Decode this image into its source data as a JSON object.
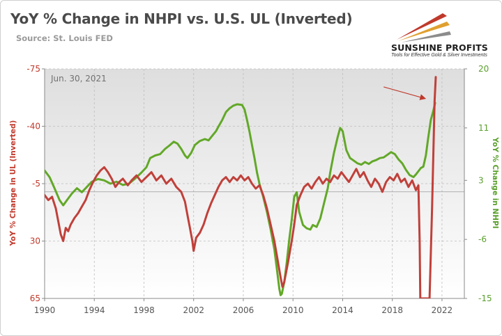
{
  "header": {
    "title": "YoY % Change in NHPI vs. U.S. UL (Inverted)",
    "source": "Source: St. Louis FED"
  },
  "logo": {
    "name": "SUNSHINE PROFITS",
    "tagline": "Tools for Effective Gold & Silver Investments",
    "colors": [
      "#c0392b",
      "#e0a030",
      "#8c8c8c"
    ]
  },
  "colors": {
    "ul_series": "#c0403a",
    "nhpi_series": "#62a828",
    "left_axis_text": "#c0392b",
    "right_axis_text": "#5aa02c",
    "grid": "#bdbdbd"
  },
  "chart_data": {
    "type": "line",
    "annotation": "Jun. 30, 2021",
    "xlim": [
      1990,
      2023.8
    ],
    "x_ticks": [
      1990,
      1994,
      1998,
      2002,
      2006,
      2010,
      2014,
      2018,
      2022
    ],
    "grid": true,
    "y_left": {
      "label": "YoY % Change in UL (Inverted)",
      "ticks": [
        -75,
        -40,
        -5,
        30,
        65
      ],
      "range": [
        -75,
        65
      ],
      "inverted": true
    },
    "y_right": {
      "label": "YoY % Change in NHPI",
      "ticks": [
        20,
        11,
        3,
        -6,
        -15
      ],
      "range": [
        -15,
        20
      ]
    },
    "reference_line": {
      "axis": "left",
      "value": 0
    },
    "series": [
      {
        "name": "YoY % Change in UL (Inverted)",
        "axis": "left",
        "points": [
          [
            1990.0,
            2
          ],
          [
            1990.3,
            5
          ],
          [
            1990.6,
            3
          ],
          [
            1990.9,
            10
          ],
          [
            1991.1,
            18
          ],
          [
            1991.3,
            26
          ],
          [
            1991.5,
            30
          ],
          [
            1991.7,
            22
          ],
          [
            1991.9,
            24
          ],
          [
            1992.1,
            20
          ],
          [
            1992.4,
            16
          ],
          [
            1992.7,
            13
          ],
          [
            1993.0,
            9
          ],
          [
            1993.3,
            5
          ],
          [
            1993.6,
            -1
          ],
          [
            1993.9,
            -6
          ],
          [
            1994.2,
            -10
          ],
          [
            1994.5,
            -13
          ],
          [
            1994.8,
            -15
          ],
          [
            1995.1,
            -12
          ],
          [
            1995.4,
            -8
          ],
          [
            1995.7,
            -3
          ],
          [
            1996.0,
            -6
          ],
          [
            1996.3,
            -8
          ],
          [
            1996.7,
            -4
          ],
          [
            1997.0,
            -7
          ],
          [
            1997.4,
            -10
          ],
          [
            1997.8,
            -6
          ],
          [
            1998.2,
            -9
          ],
          [
            1998.6,
            -12
          ],
          [
            1999.0,
            -7
          ],
          [
            1999.4,
            -10
          ],
          [
            1999.8,
            -5
          ],
          [
            2000.2,
            -8
          ],
          [
            2000.6,
            -3
          ],
          [
            2001.0,
            0
          ],
          [
            2001.3,
            6
          ],
          [
            2001.5,
            14
          ],
          [
            2001.7,
            22
          ],
          [
            2001.9,
            30
          ],
          [
            2002.0,
            36
          ],
          [
            2002.2,
            28
          ],
          [
            2002.5,
            25
          ],
          [
            2002.8,
            20
          ],
          [
            2003.1,
            13
          ],
          [
            2003.4,
            7
          ],
          [
            2003.7,
            2
          ],
          [
            2004.0,
            -3
          ],
          [
            2004.3,
            -7
          ],
          [
            2004.6,
            -9
          ],
          [
            2004.9,
            -6
          ],
          [
            2005.2,
            -9
          ],
          [
            2005.5,
            -7
          ],
          [
            2005.8,
            -10
          ],
          [
            2006.1,
            -7
          ],
          [
            2006.4,
            -9
          ],
          [
            2006.7,
            -5
          ],
          [
            2007.0,
            -2
          ],
          [
            2007.3,
            -4
          ],
          [
            2007.6,
            2
          ],
          [
            2007.9,
            10
          ],
          [
            2008.2,
            20
          ],
          [
            2008.5,
            30
          ],
          [
            2008.8,
            43
          ],
          [
            2009.0,
            52
          ],
          [
            2009.15,
            58
          ],
          [
            2009.3,
            55
          ],
          [
            2009.6,
            43
          ],
          [
            2009.9,
            30
          ],
          [
            2010.1,
            20
          ],
          [
            2010.3,
            8
          ],
          [
            2010.6,
            2
          ],
          [
            2010.9,
            -3
          ],
          [
            2011.2,
            -5
          ],
          [
            2011.5,
            -2
          ],
          [
            2011.8,
            -6
          ],
          [
            2012.1,
            -9
          ],
          [
            2012.4,
            -5
          ],
          [
            2012.7,
            -8
          ],
          [
            2013.0,
            -6
          ],
          [
            2013.3,
            -10
          ],
          [
            2013.6,
            -8
          ],
          [
            2013.9,
            -12
          ],
          [
            2014.2,
            -9
          ],
          [
            2014.5,
            -6
          ],
          [
            2014.8,
            -10
          ],
          [
            2015.1,
            -14
          ],
          [
            2015.4,
            -9
          ],
          [
            2015.7,
            -12
          ],
          [
            2016.0,
            -7
          ],
          [
            2016.3,
            -3
          ],
          [
            2016.6,
            -8
          ],
          [
            2016.9,
            -5
          ],
          [
            2017.2,
            0
          ],
          [
            2017.5,
            -6
          ],
          [
            2017.8,
            -9
          ],
          [
            2018.1,
            -7
          ],
          [
            2018.4,
            -11
          ],
          [
            2018.7,
            -6
          ],
          [
            2019.0,
            -8
          ],
          [
            2019.3,
            -3
          ],
          [
            2019.6,
            -7
          ],
          [
            2019.9,
            -1
          ],
          [
            2020.1,
            -4
          ],
          [
            2020.2,
            30
          ],
          [
            2020.25,
            65
          ],
          [
            2021.0,
            65
          ],
          [
            2021.2,
            10
          ],
          [
            2021.4,
            -55
          ],
          [
            2021.5,
            -70
          ]
        ]
      },
      {
        "name": "YoY % Change in NHPI",
        "axis": "right",
        "points": [
          [
            1990.0,
            4.5
          ],
          [
            1990.4,
            3.5
          ],
          [
            1990.8,
            1.8
          ],
          [
            1991.2,
            0.0
          ],
          [
            1991.5,
            -0.8
          ],
          [
            1991.8,
            0.0
          ],
          [
            1992.2,
            1.0
          ],
          [
            1992.6,
            1.8
          ],
          [
            1993.0,
            1.2
          ],
          [
            1993.4,
            2.0
          ],
          [
            1993.8,
            2.8
          ],
          [
            1994.3,
            3.2
          ],
          [
            1994.8,
            3.0
          ],
          [
            1995.3,
            2.5
          ],
          [
            1995.8,
            2.8
          ],
          [
            1996.3,
            2.3
          ],
          [
            1996.8,
            2.5
          ],
          [
            1997.3,
            3.3
          ],
          [
            1997.8,
            4.2
          ],
          [
            1998.2,
            5.0
          ],
          [
            1998.5,
            6.4
          ],
          [
            1998.9,
            6.8
          ],
          [
            1999.3,
            7.0
          ],
          [
            1999.7,
            7.8
          ],
          [
            2000.1,
            8.4
          ],
          [
            2000.4,
            8.9
          ],
          [
            2000.7,
            8.6
          ],
          [
            2001.0,
            7.8
          ],
          [
            2001.3,
            6.8
          ],
          [
            2001.5,
            6.4
          ],
          [
            2001.8,
            7.2
          ],
          [
            2002.1,
            8.4
          ],
          [
            2002.5,
            9.0
          ],
          [
            2002.9,
            9.3
          ],
          [
            2003.2,
            9.1
          ],
          [
            2003.5,
            9.8
          ],
          [
            2003.8,
            10.5
          ],
          [
            2004.0,
            11.2
          ],
          [
            2004.3,
            12.2
          ],
          [
            2004.6,
            13.4
          ],
          [
            2004.9,
            14.0
          ],
          [
            2005.2,
            14.4
          ],
          [
            2005.5,
            14.6
          ],
          [
            2005.9,
            14.5
          ],
          [
            2006.1,
            13.8
          ],
          [
            2006.3,
            12.2
          ],
          [
            2006.5,
            10.4
          ],
          [
            2006.7,
            8.4
          ],
          [
            2006.9,
            6.4
          ],
          [
            2007.1,
            4.2
          ],
          [
            2007.3,
            2.5
          ],
          [
            2007.6,
            0.5
          ],
          [
            2007.9,
            -1.8
          ],
          [
            2008.2,
            -4.5
          ],
          [
            2008.5,
            -7.5
          ],
          [
            2008.7,
            -10.5
          ],
          [
            2008.9,
            -13.5
          ],
          [
            2009.0,
            -14.5
          ],
          [
            2009.1,
            -14.3
          ],
          [
            2009.3,
            -12.5
          ],
          [
            2009.5,
            -9.5
          ],
          [
            2009.7,
            -6.0
          ],
          [
            2009.9,
            -3.0
          ],
          [
            2010.1,
            0.5
          ],
          [
            2010.3,
            1.2
          ],
          [
            2010.5,
            -1.8
          ],
          [
            2010.8,
            -3.8
          ],
          [
            2011.1,
            -4.3
          ],
          [
            2011.4,
            -4.5
          ],
          [
            2011.6,
            -3.8
          ],
          [
            2011.9,
            -4.1
          ],
          [
            2012.2,
            -2.8
          ],
          [
            2012.5,
            -0.5
          ],
          [
            2012.8,
            1.8
          ],
          [
            2013.0,
            4.2
          ],
          [
            2013.3,
            7.2
          ],
          [
            2013.6,
            9.6
          ],
          [
            2013.8,
            11.0
          ],
          [
            2014.0,
            10.5
          ],
          [
            2014.3,
            7.6
          ],
          [
            2014.6,
            6.4
          ],
          [
            2014.9,
            6.0
          ],
          [
            2015.2,
            5.6
          ],
          [
            2015.5,
            5.4
          ],
          [
            2015.8,
            5.8
          ],
          [
            2016.1,
            5.5
          ],
          [
            2016.4,
            5.9
          ],
          [
            2016.7,
            6.1
          ],
          [
            2017.0,
            6.4
          ],
          [
            2017.3,
            6.5
          ],
          [
            2017.6,
            6.9
          ],
          [
            2017.9,
            7.3
          ],
          [
            2018.2,
            7.0
          ],
          [
            2018.5,
            6.2
          ],
          [
            2018.8,
            5.6
          ],
          [
            2019.1,
            4.6
          ],
          [
            2019.4,
            3.8
          ],
          [
            2019.7,
            3.5
          ],
          [
            2019.9,
            3.9
          ],
          [
            2020.1,
            4.4
          ],
          [
            2020.3,
            4.9
          ],
          [
            2020.5,
            5.1
          ],
          [
            2020.7,
            6.8
          ],
          [
            2020.9,
            9.6
          ],
          [
            2021.1,
            12.2
          ],
          [
            2021.3,
            13.6
          ],
          [
            2021.45,
            14.8
          ]
        ]
      }
    ]
  }
}
